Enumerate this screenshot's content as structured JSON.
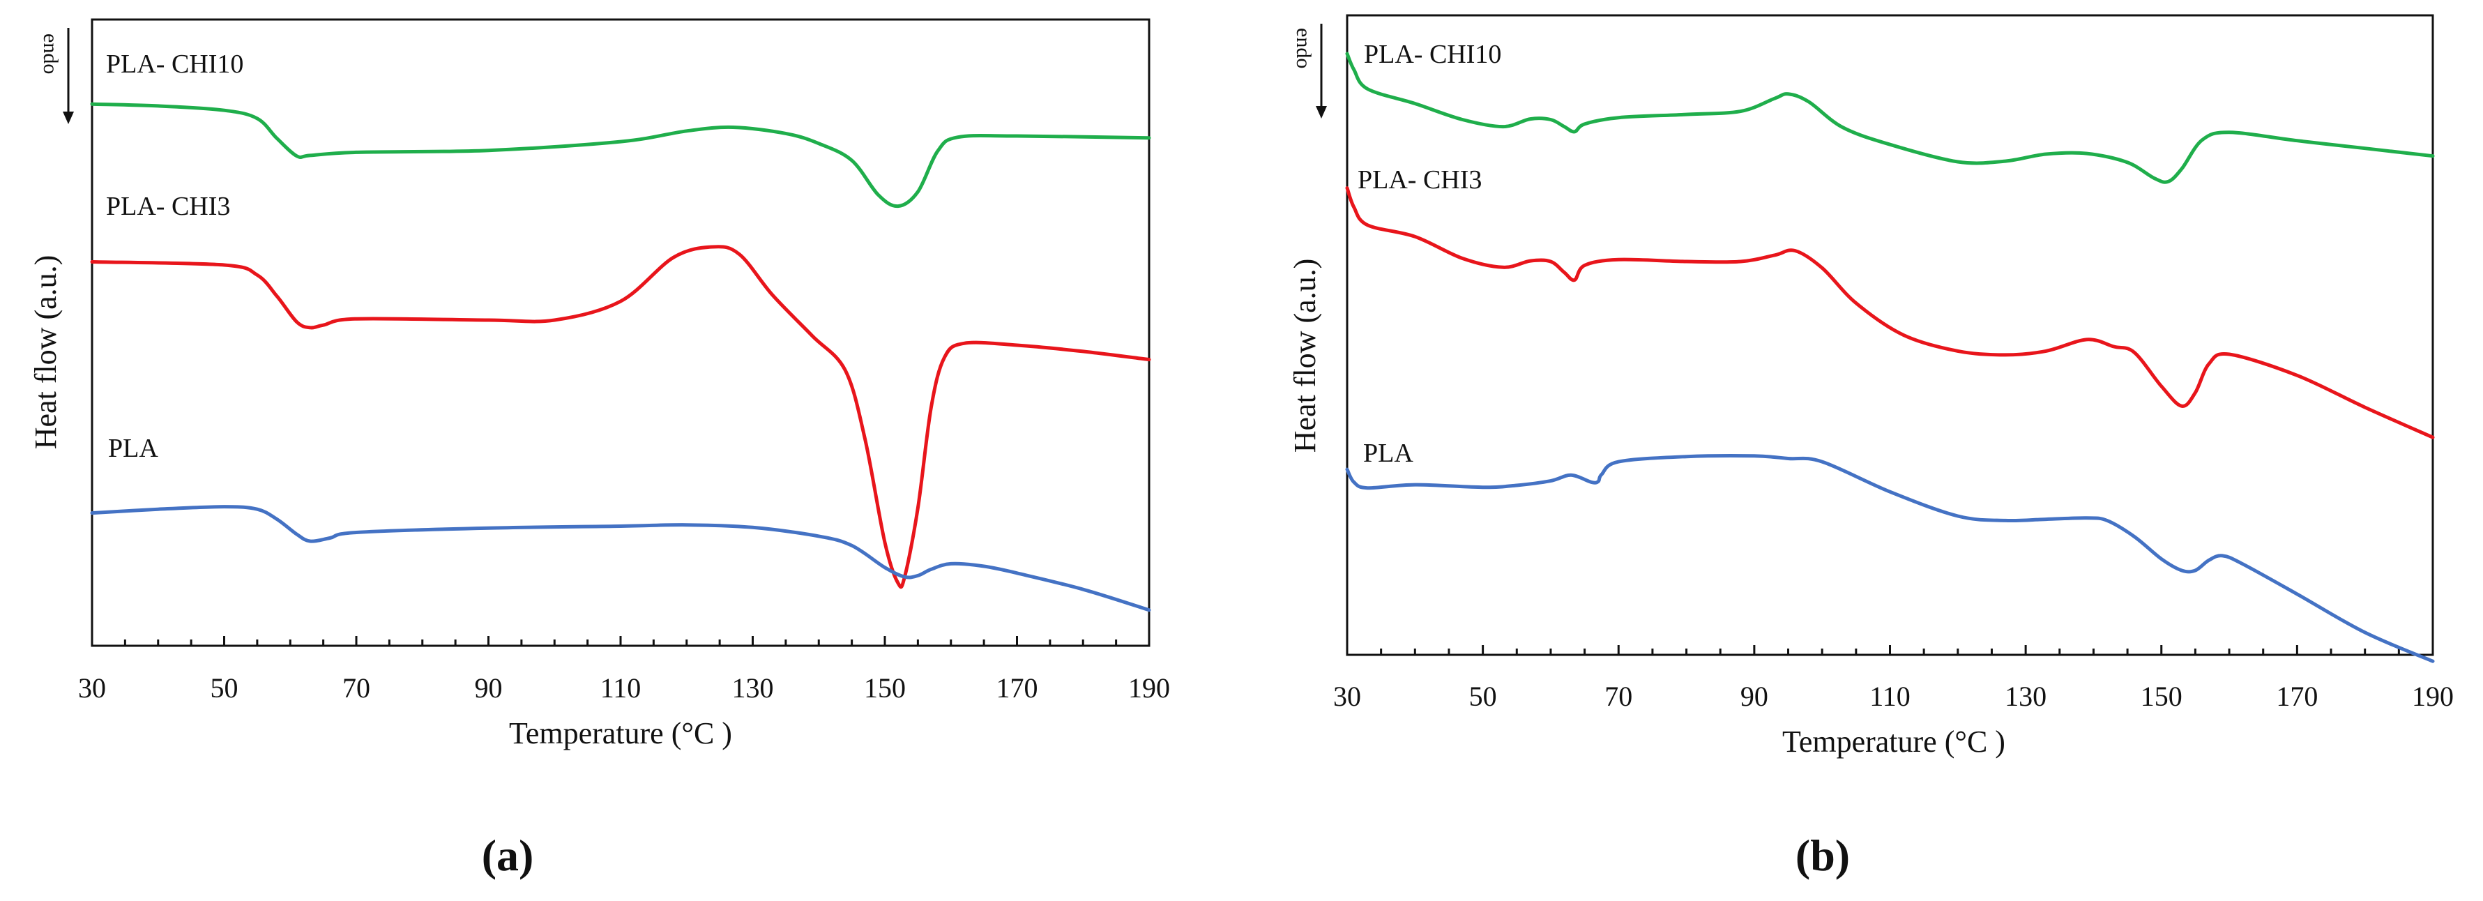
{
  "colors": {
    "pla": "#4472C4",
    "chi3": "#E8151B",
    "chi10": "#1FAE4B",
    "axis": "#111111"
  },
  "chart_data": [
    {
      "type": "line",
      "panel_label": "(a)",
      "title": "",
      "xlabel": "Temperature (°C )",
      "ylabel": "Heat flow (a.u.)",
      "endo_label": "endo",
      "xlim": [
        30,
        190
      ],
      "ylim": [
        0,
        100
      ],
      "xticks": [
        30,
        50,
        70,
        90,
        110,
        130,
        150,
        170,
        190
      ],
      "grid": false,
      "series": [
        {
          "name": "PLA- CHI10",
          "color_key": "chi10",
          "x": [
            30,
            40,
            50,
            55,
            58,
            61,
            63,
            70,
            90,
            110,
            120,
            127,
            135,
            140,
            145,
            149,
            152,
            155,
            158,
            161,
            170,
            190
          ],
          "y": [
            86.5,
            86.2,
            85.5,
            84.2,
            81,
            78.2,
            78.3,
            78.8,
            79.1,
            80.5,
            82.2,
            82.8,
            81.8,
            80.2,
            77.5,
            72,
            70.2,
            72.5,
            79,
            81.2,
            81.4,
            81.1
          ]
        },
        {
          "name": "PLA- CHI3",
          "color_key": "chi3",
          "x": [
            30,
            50,
            55,
            58,
            61,
            63,
            65,
            70,
            90,
            100,
            110,
            118,
            124,
            128,
            133,
            139,
            144,
            147,
            150,
            152,
            153,
            155,
            157,
            159,
            162,
            170,
            180,
            190
          ],
          "y": [
            61.3,
            60.8,
            59.2,
            55.8,
            51.7,
            50.8,
            51.2,
            52.2,
            52,
            52,
            55,
            62,
            63.7,
            62.5,
            56,
            49.5,
            44,
            33,
            16.5,
            10,
            11,
            22,
            38,
            46,
            48.3,
            48,
            47,
            45.7
          ]
        },
        {
          "name": "PLA",
          "color_key": "pla",
          "x": [
            30,
            40,
            50,
            55,
            58,
            61,
            63,
            66,
            70,
            90,
            110,
            120,
            130,
            140,
            145,
            150,
            153,
            155,
            157,
            160,
            165,
            170,
            180,
            190
          ],
          "y": [
            21.2,
            21.8,
            22.2,
            21.8,
            20.2,
            17.8,
            16.7,
            17.2,
            18.1,
            18.8,
            19.1,
            19.3,
            18.9,
            17.5,
            16,
            12.5,
            11,
            11.2,
            12.2,
            13.1,
            12.7,
            11.6,
            9,
            5.7
          ]
        }
      ]
    },
    {
      "type": "line",
      "panel_label": "(b)",
      "title": "",
      "xlabel": "Temperature (°C )",
      "ylabel": "Heat flow (a.u.)",
      "endo_label": "endo",
      "xlim": [
        30,
        190
      ],
      "ylim": [
        0,
        100
      ],
      "xticks": [
        30,
        50,
        70,
        90,
        110,
        130,
        150,
        170,
        190
      ],
      "grid": false,
      "series": [
        {
          "name": "PLA- CHI10",
          "color_key": "chi10",
          "x": [
            30,
            31,
            33,
            40,
            47,
            53,
            57,
            60,
            62,
            63.5,
            65,
            70,
            80,
            88,
            93,
            95,
            98,
            103,
            110,
            120,
            127,
            133,
            139,
            145,
            149,
            151,
            153,
            156,
            160,
            170,
            180,
            190
          ],
          "y": [
            94,
            91.5,
            88.5,
            86.2,
            83.7,
            82.6,
            83.8,
            83.7,
            82.6,
            81.8,
            83,
            84,
            84.5,
            85,
            87,
            87.7,
            86.5,
            82.5,
            79.8,
            77.1,
            77.2,
            78.3,
            78.4,
            77,
            74.5,
            74,
            76,
            80.5,
            81.7,
            80.4,
            79.2,
            78
          ]
        },
        {
          "name": "PLA- CHI3",
          "color_key": "chi3",
          "x": [
            30,
            31,
            33,
            40,
            47,
            53,
            57,
            60,
            62,
            63.5,
            65,
            70,
            80,
            88,
            93,
            96,
            100,
            105,
            112,
            120,
            127,
            133,
            139,
            143,
            146,
            150,
            153,
            155,
            157,
            160,
            170,
            180,
            190
          ],
          "y": [
            73,
            70,
            67.2,
            65.4,
            62,
            60.6,
            61.6,
            61.5,
            59.8,
            58.6,
            60.9,
            61.8,
            61.5,
            61.5,
            62.5,
            63.2,
            60.5,
            55,
            50,
            47.5,
            46.9,
            47.5,
            49.3,
            48.2,
            47.3,
            42,
            38.9,
            41,
            45.5,
            47,
            43.7,
            38.7,
            34
          ]
        },
        {
          "name": "PLA",
          "color_key": "pla",
          "x": [
            30,
            31,
            33,
            40,
            50,
            55,
            60,
            63,
            66,
            67,
            67.5,
            70,
            80,
            90,
            95,
            100,
            110,
            120,
            127,
            133,
            139,
            142,
            146,
            150,
            153,
            155,
            157,
            159,
            162,
            170,
            180,
            190
          ],
          "y": [
            29,
            27,
            26.1,
            26.6,
            26.2,
            26.5,
            27.2,
            28.1,
            27,
            27.1,
            28.2,
            30.2,
            31,
            31.1,
            30.7,
            30.2,
            25.5,
            21.7,
            21,
            21.2,
            21.4,
            21,
            18.5,
            15,
            13.2,
            13.2,
            14.8,
            15.5,
            14.2,
            9.5,
            3.5,
            -1
          ]
        }
      ]
    }
  ]
}
